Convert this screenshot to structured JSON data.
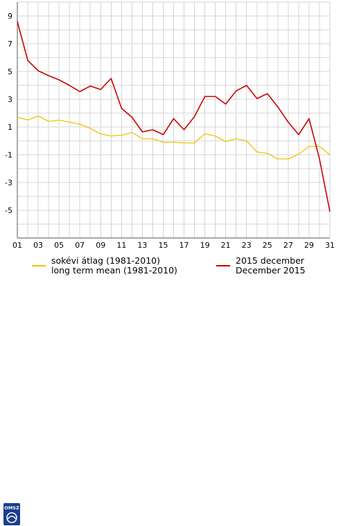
{
  "chart_data": {
    "type": "line",
    "x": [
      1,
      2,
      3,
      4,
      5,
      6,
      7,
      8,
      9,
      10,
      11,
      12,
      13,
      14,
      15,
      16,
      17,
      18,
      19,
      20,
      21,
      22,
      23,
      24,
      25,
      26,
      27,
      28,
      29,
      30,
      31
    ],
    "x_tick_labels": [
      "01",
      "03",
      "05",
      "07",
      "09",
      "11",
      "13",
      "15",
      "17",
      "19",
      "21",
      "23",
      "25",
      "27",
      "29",
      "31"
    ],
    "y_tick_values": [
      9,
      7,
      5,
      3,
      1,
      -1,
      -3,
      -5
    ],
    "ylim": [
      -7,
      10
    ],
    "grid": true,
    "legend_position": "bottom",
    "series": [
      {
        "name": "sokévi átlag (1981-2010)",
        "name_line2": "long term mean (1981-2010)",
        "color": "#f2c200",
        "values": [
          1.7,
          1.5,
          1.8,
          1.4,
          1.5,
          1.35,
          1.2,
          0.9,
          0.5,
          0.35,
          0.4,
          0.6,
          0.15,
          0.15,
          -0.1,
          -0.1,
          -0.15,
          -0.15,
          0.5,
          0.35,
          -0.05,
          0.15,
          0.0,
          -0.8,
          -0.9,
          -1.3,
          -1.3,
          -0.95,
          -0.4,
          -0.4,
          -1.0
        ]
      },
      {
        "name": "2015 december",
        "name_line2": "December 2015",
        "color": "#cc0000",
        "values": [
          8.6,
          5.8,
          5.05,
          4.7,
          4.4,
          4.0,
          3.55,
          3.95,
          3.7,
          4.5,
          2.35,
          1.7,
          0.65,
          0.8,
          0.45,
          1.6,
          0.8,
          1.75,
          3.2,
          3.2,
          2.65,
          3.6,
          4.0,
          3.05,
          3.4,
          2.45,
          1.35,
          0.45,
          1.6,
          -1.3,
          -5.1
        ]
      }
    ]
  },
  "legend": {
    "logo_text": "OMSZ"
  }
}
